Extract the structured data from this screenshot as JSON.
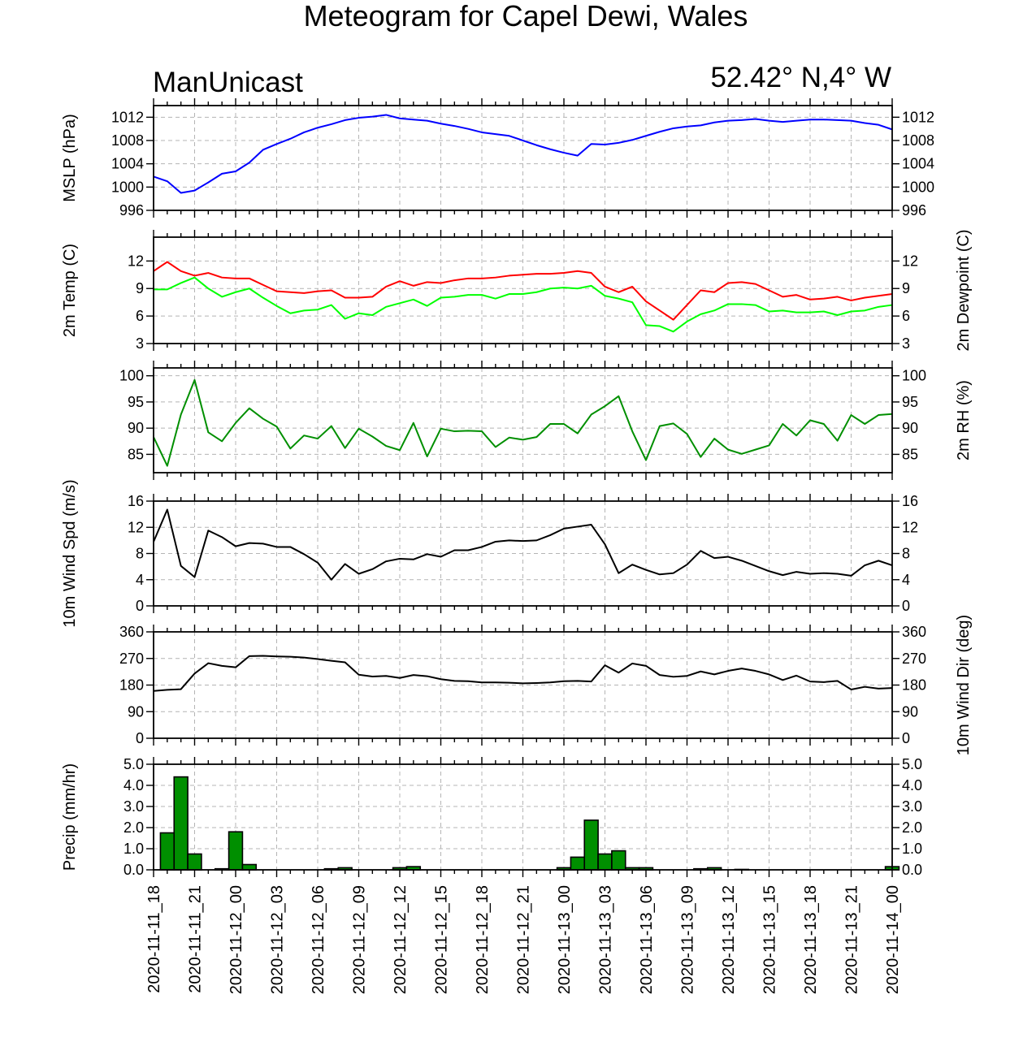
{
  "title": "Meteogram for Capel Dewi, Wales",
  "model_label": "ManUnicast",
  "location_label": "52.42° N,4° W",
  "chart_data": [
    {
      "type": "line",
      "id": "mslp",
      "ylabel": "MSLP (hPa)",
      "right_label": "",
      "ylim": [
        996,
        1014
      ],
      "yticks": [
        "996",
        "1000",
        "1004",
        "1008",
        "1012"
      ],
      "grid": true,
      "series": [
        {
          "color": "#0000ff",
          "x": [
            0,
            1,
            2,
            3,
            4,
            5,
            6,
            7,
            8,
            9,
            10,
            11,
            12,
            13,
            14,
            15,
            16,
            17,
            18,
            19,
            20,
            21,
            22,
            23,
            24,
            25,
            26,
            27,
            28,
            29,
            30,
            31,
            32,
            33,
            34,
            35,
            36,
            37,
            38,
            39,
            40,
            41,
            42,
            43,
            44,
            45,
            46,
            47,
            48,
            49,
            50,
            51,
            52,
            53,
            54
          ],
          "values": [
            1001.8,
            1001.0,
            999.0,
            999.4,
            1000.8,
            1002.3,
            1002.7,
            1004.2,
            1006.4,
            1007.4,
            1008.3,
            1009.4,
            1010.2,
            1010.8,
            1011.5,
            1011.9,
            1012.1,
            1012.4,
            1011.8,
            1011.6,
            1011.4,
            1010.9,
            1010.5,
            1010.0,
            1009.4,
            1009.1,
            1008.8,
            1008.0,
            1007.2,
            1006.5,
            1005.9,
            1005.4,
            1007.4,
            1007.3,
            1007.6,
            1008.1,
            1008.8,
            1009.5,
            1010.1,
            1010.4,
            1010.6,
            1011.1,
            1011.4,
            1011.5,
            1011.7,
            1011.4,
            1011.2,
            1011.4,
            1011.6,
            1011.6,
            1011.5,
            1011.4,
            1011.0,
            1010.7,
            1009.9
          ]
        }
      ]
    },
    {
      "type": "line",
      "id": "temp",
      "ylabel": "2m Temp (C)",
      "right_label": "2m Dewpoint (C)",
      "ylim": [
        3,
        14.6
      ],
      "yticks": [
        "3",
        "6",
        "9",
        "12"
      ],
      "grid": true,
      "series": [
        {
          "color": "#ff0000",
          "x": [
            0,
            1,
            2,
            3,
            4,
            5,
            6,
            7,
            8,
            9,
            10,
            11,
            12,
            13,
            14,
            15,
            16,
            17,
            18,
            19,
            20,
            21,
            22,
            23,
            24,
            25,
            26,
            27,
            28,
            29,
            30,
            31,
            32,
            33,
            34,
            35,
            36,
            37,
            38,
            39,
            40,
            41,
            42,
            43,
            44,
            45,
            46,
            47,
            48,
            49,
            50,
            51,
            52,
            53,
            54
          ],
          "values": [
            10.9,
            11.9,
            10.9,
            10.4,
            10.7,
            10.2,
            10.1,
            10.1,
            9.4,
            8.7,
            8.6,
            8.5,
            8.7,
            8.8,
            8.0,
            8.0,
            8.1,
            9.2,
            9.8,
            9.3,
            9.7,
            9.6,
            9.9,
            10.1,
            10.1,
            10.2,
            10.4,
            10.5,
            10.6,
            10.6,
            10.7,
            10.9,
            10.7,
            9.2,
            8.6,
            9.2,
            7.6,
            6.6,
            5.6,
            7.2,
            8.8,
            8.6,
            9.6,
            9.7,
            9.5,
            8.8,
            8.1,
            8.3,
            7.8,
            7.9,
            8.1,
            7.7,
            8.0,
            8.2,
            8.4
          ]
        },
        {
          "color": "#00ff00",
          "x": [
            0,
            1,
            2,
            3,
            4,
            5,
            6,
            7,
            8,
            9,
            10,
            11,
            12,
            13,
            14,
            15,
            16,
            17,
            18,
            19,
            20,
            21,
            22,
            23,
            24,
            25,
            26,
            27,
            28,
            29,
            30,
            31,
            32,
            33,
            34,
            35,
            36,
            37,
            38,
            39,
            40,
            41,
            42,
            43,
            44,
            45,
            46,
            47,
            48,
            49,
            50,
            51,
            52,
            53,
            54
          ],
          "values": [
            8.9,
            8.9,
            9.6,
            10.2,
            9.0,
            8.1,
            8.6,
            9.0,
            8.0,
            7.1,
            6.3,
            6.6,
            6.7,
            7.2,
            5.7,
            6.3,
            6.1,
            7.0,
            7.4,
            7.8,
            7.1,
            8.0,
            8.1,
            8.3,
            8.3,
            7.9,
            8.4,
            8.4,
            8.6,
            9.0,
            9.1,
            9.0,
            9.3,
            8.2,
            7.9,
            7.5,
            5.0,
            4.9,
            4.3,
            5.4,
            6.2,
            6.6,
            7.3,
            7.3,
            7.2,
            6.5,
            6.6,
            6.4,
            6.4,
            6.5,
            6.1,
            6.5,
            6.6,
            7.0,
            7.2
          ]
        }
      ]
    },
    {
      "type": "line",
      "id": "rh",
      "ylabel": "",
      "right_label": "2m RH (%)",
      "ylim": [
        81.5,
        101.5
      ],
      "yticks": [
        "85",
        "90",
        "95",
        "100"
      ],
      "grid": true,
      "series": [
        {
          "color": "#008f00",
          "x": [
            0,
            1,
            2,
            3,
            4,
            5,
            6,
            7,
            8,
            9,
            10,
            11,
            12,
            13,
            14,
            15,
            16,
            17,
            18,
            19,
            20,
            21,
            22,
            23,
            24,
            25,
            26,
            27,
            28,
            29,
            30,
            31,
            32,
            33,
            34,
            35,
            36,
            37,
            38,
            39,
            40,
            41,
            42,
            43,
            44,
            45,
            46,
            47,
            48,
            49,
            50,
            51,
            52,
            53,
            54
          ],
          "values": [
            88.3,
            82.8,
            92.6,
            99.2,
            89.2,
            87.5,
            91.0,
            93.8,
            91.8,
            90.3,
            86.1,
            88.6,
            88.0,
            90.4,
            86.2,
            89.9,
            88.4,
            86.6,
            85.8,
            91.0,
            84.6,
            89.9,
            89.4,
            89.5,
            89.4,
            86.4,
            88.2,
            87.8,
            88.3,
            90.8,
            90.8,
            89.0,
            92.6,
            94.2,
            96.1,
            89.4,
            83.9,
            90.4,
            90.9,
            88.9,
            84.5,
            88.0,
            85.9,
            85.1,
            85.9,
            86.7,
            90.8,
            88.6,
            91.5,
            90.8,
            87.6,
            92.5,
            90.8,
            92.5,
            92.7
          ]
        }
      ]
    },
    {
      "type": "line",
      "id": "wspd",
      "ylabel": "10m Wind Spd (m/s)",
      "right_label": "",
      "ylim": [
        0,
        16
      ],
      "yticks": [
        "0",
        "4",
        "8",
        "12",
        "16"
      ],
      "grid": true,
      "series": [
        {
          "color": "#000000",
          "x": [
            0,
            1,
            2,
            3,
            4,
            5,
            6,
            7,
            8,
            9,
            10,
            11,
            12,
            13,
            14,
            15,
            16,
            17,
            18,
            19,
            20,
            21,
            22,
            23,
            24,
            25,
            26,
            27,
            28,
            29,
            30,
            31,
            32,
            33,
            34,
            35,
            36,
            37,
            38,
            39,
            40,
            41,
            42,
            43,
            44,
            45,
            46,
            47,
            48,
            49,
            50,
            51,
            52,
            53,
            54
          ],
          "values": [
            9.8,
            14.7,
            6.1,
            4.4,
            11.5,
            10.5,
            9.1,
            9.6,
            9.5,
            9.0,
            9.0,
            7.9,
            6.6,
            4.0,
            6.4,
            4.9,
            5.6,
            6.8,
            7.2,
            7.1,
            7.9,
            7.5,
            8.5,
            8.5,
            9.0,
            9.8,
            10.0,
            9.9,
            10.0,
            10.8,
            11.8,
            12.1,
            12.4,
            9.4,
            5.0,
            6.3,
            5.5,
            4.8,
            5.0,
            6.3,
            8.4,
            7.3,
            7.5,
            6.9,
            6.1,
            5.3,
            4.7,
            5.2,
            4.9,
            5.0,
            4.9,
            4.6,
            6.2,
            6.9,
            6.2
          ]
        }
      ]
    },
    {
      "type": "line",
      "id": "wdir",
      "ylabel": "",
      "right_label": "10m Wind Dir (deg)",
      "ylim": [
        0,
        360
      ],
      "yticks": [
        "0",
        "90",
        "180",
        "270",
        "360"
      ],
      "grid": true,
      "series": [
        {
          "color": "#000000",
          "x": [
            0,
            1,
            2,
            3,
            4,
            5,
            6,
            7,
            8,
            9,
            10,
            11,
            12,
            13,
            14,
            15,
            16,
            17,
            18,
            19,
            20,
            21,
            22,
            23,
            24,
            25,
            26,
            27,
            28,
            29,
            30,
            31,
            32,
            33,
            34,
            35,
            36,
            37,
            38,
            39,
            40,
            41,
            42,
            43,
            44,
            45,
            46,
            47,
            48,
            49,
            50,
            51,
            52,
            53,
            54
          ],
          "values": [
            160,
            164,
            166,
            219,
            254,
            245,
            240,
            278,
            279,
            277,
            276,
            273,
            268,
            262,
            257,
            215,
            209,
            211,
            204,
            214,
            210,
            200,
            194,
            193,
            189,
            189,
            188,
            186,
            187,
            189,
            193,
            194,
            192,
            247,
            222,
            253,
            245,
            214,
            208,
            211,
            226,
            216,
            228,
            236,
            228,
            216,
            197,
            212,
            192,
            190,
            194,
            165,
            174,
            168,
            170
          ]
        }
      ]
    },
    {
      "type": "bar",
      "id": "precip",
      "ylabel": "Precip (mm/hr)",
      "right_label": "",
      "ylim": [
        0,
        5
      ],
      "yticks": [
        "0.0",
        "1.0",
        "2.0",
        "3.0",
        "4.0",
        "5.0"
      ],
      "grid": true,
      "bar_color": "#008f00",
      "x": [
        1,
        2,
        3,
        5,
        6,
        7,
        13,
        14,
        18,
        19,
        30,
        31,
        32,
        33,
        34,
        35,
        36,
        40,
        41,
        43,
        54
      ],
      "values": [
        1.75,
        4.4,
        0.75,
        0.05,
        1.8,
        0.25,
        0.05,
        0.1,
        0.1,
        0.15,
        0.1,
        0.6,
        2.35,
        0.75,
        0.9,
        0.1,
        0.1,
        0.05,
        0.1,
        0.02,
        0.15
      ]
    }
  ],
  "x_tick_labels": [
    "2020-11-11_18",
    "2020-11-11_21",
    "2020-11-12_00",
    "2020-11-12_03",
    "2020-11-12_06",
    "2020-11-12_09",
    "2020-11-12_12",
    "2020-11-12_15",
    "2020-11-12_18",
    "2020-11-12_21",
    "2020-11-13_00",
    "2020-11-13_03",
    "2020-11-13_06",
    "2020-11-13_09",
    "2020-11-13_12",
    "2020-11-13_15",
    "2020-11-13_18",
    "2020-11-13_21",
    "2020-11-14_00"
  ]
}
